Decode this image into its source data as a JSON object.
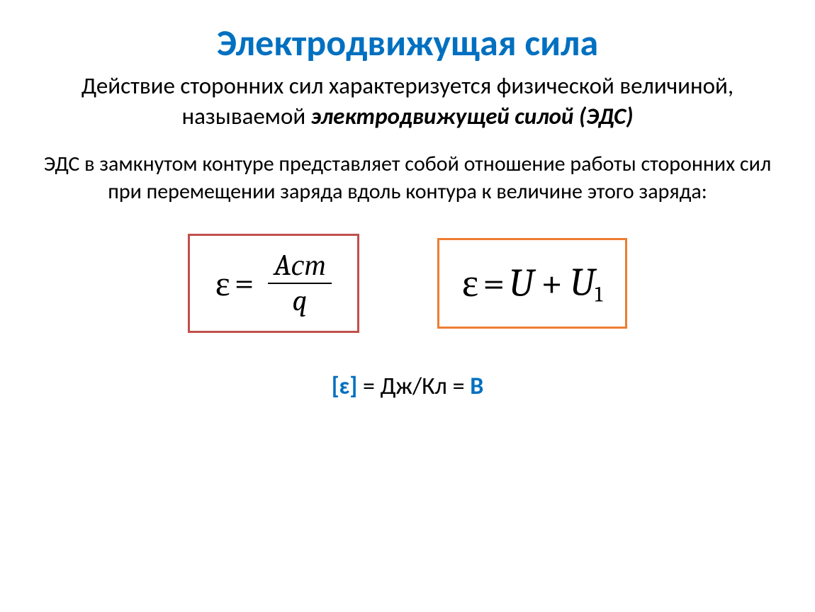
{
  "title": "Электродвижущая сила",
  "subtitle_plain": "Действие сторонних сил характеризуется физической величиной, называемой ",
  "subtitle_emph": "электродвижущей силой (ЭДС)",
  "definition": "ЭДС в замкнутом контуре представляет собой отношение работы сторонних сил при перемещении заряда вдоль контура к величине этого заряда:",
  "formula_left": {
    "epsilon": "ε",
    "equals": "=",
    "numerator": "Aст",
    "denominator": "q",
    "border_color": "#c0504d",
    "font_size": 50
  },
  "formula_right": {
    "epsilon": "ε",
    "equals": "=",
    "term1": "U",
    "plus": "+",
    "term2_base": "U",
    "term2_sub": "1",
    "border_color": "#ed7d31",
    "font_size": 56
  },
  "units": {
    "left_bracket": "[",
    "eps": "ɛ",
    "right_bracket": "]",
    "equals1": " = ",
    "value": "Дж/Кл",
    "equals2": " = ",
    "volt": "В",
    "accent_color": "#0070c0",
    "font_size": 34
  },
  "colors": {
    "title": "#0070c0",
    "text": "#000000",
    "background": "#ffffff"
  }
}
